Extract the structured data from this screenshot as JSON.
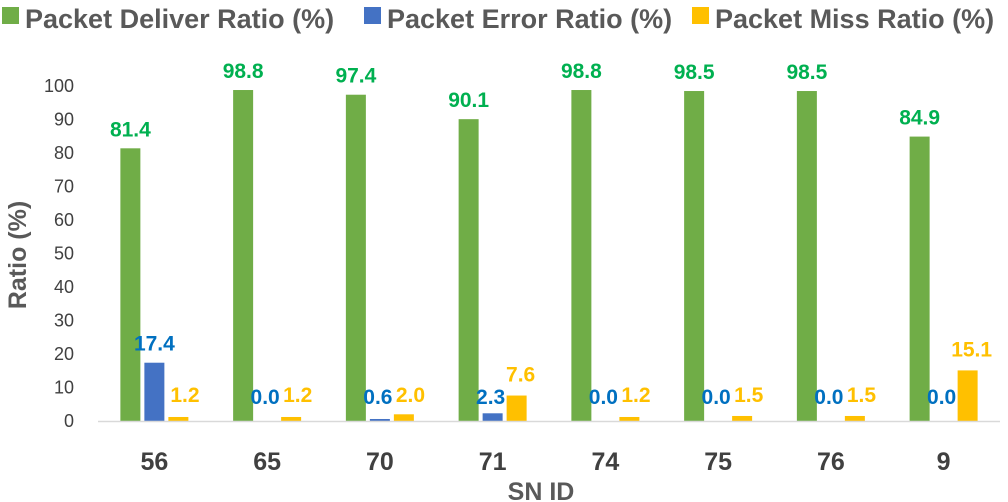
{
  "chart_data": {
    "type": "bar",
    "categories": [
      "56",
      "65",
      "70",
      "71",
      "74",
      "75",
      "76",
      "9"
    ],
    "series": [
      {
        "name": "Packet Deliver Ratio (%)",
        "color": "#70AD47",
        "label_color": "#00B050",
        "values": [
          81.4,
          98.8,
          97.4,
          90.1,
          98.8,
          98.5,
          98.5,
          84.9
        ],
        "labels": [
          "81.4",
          "98.8",
          "97.4",
          "90.1",
          "98.8",
          "98.5",
          "98.5",
          "84.9"
        ]
      },
      {
        "name": "Packet Error Ratio (%)",
        "color": "#4472C4",
        "label_color": "#0070C0",
        "values": [
          17.4,
          0.0,
          0.6,
          2.3,
          0.0,
          0.0,
          0.0,
          0.0
        ],
        "labels": [
          "17.4",
          "0.0",
          "0.6",
          "2.3",
          "0.0",
          "0.0",
          "0.0",
          "0.0"
        ]
      },
      {
        "name": "Packet Miss Ratio (%)",
        "color": "#FFC000",
        "label_color": "#FFC000",
        "values": [
          1.2,
          1.2,
          2.0,
          7.6,
          1.2,
          1.5,
          1.5,
          15.1
        ],
        "labels": [
          "1.2",
          "1.2",
          "2.0",
          "7.6",
          "1.2",
          "1.5",
          "1.5",
          "15.1"
        ]
      }
    ],
    "xlabel": "SN ID",
    "ylabel": "Ratio (%)",
    "ylim": [
      0,
      100
    ],
    "yticks": [
      "0",
      "10",
      "20",
      "30",
      "40",
      "50",
      "60",
      "70",
      "80",
      "90",
      "100"
    ],
    "grid": false,
    "legend_position": "top"
  }
}
